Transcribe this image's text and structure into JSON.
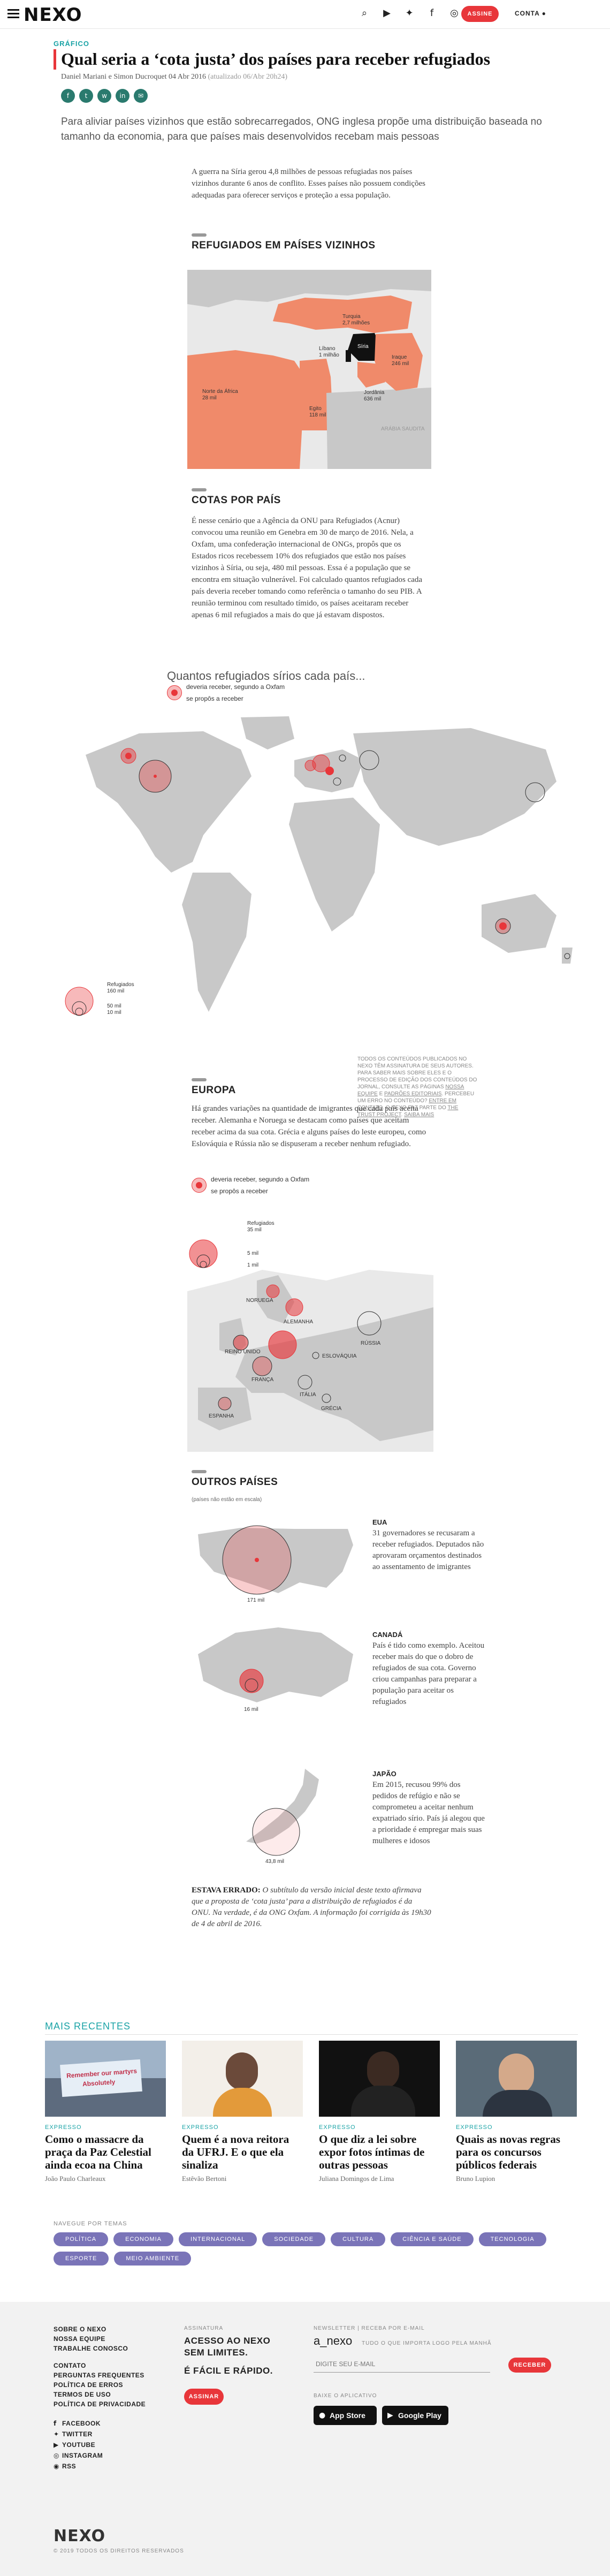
{
  "header": {
    "logo": "NEXO",
    "assine_label": "ASSINE",
    "conta_label": "CONTA"
  },
  "article": {
    "section": "GRÁFICO",
    "title": "Qual seria a ‘cota justa’ dos países para receber refugiados",
    "byline": "Daniel Mariani e Simon Ducroquet",
    "date": "04 Abr 2016",
    "updated": "(atualizado 06/Abr 20h24)",
    "lede": "Para aliviar países vizinhos que estão sobrecarregados, ONG inglesa propõe uma distribuição baseada no tamanho da economia, para que países mais desenvolvidos recebam mais pessoas",
    "intro": "A guerra na Síria gerou 4,8 milhões de pessoas refugiadas nos países vizinhos durante 6 anos de conflito. Esses países não possuem condições adequadas para oferecer serviços e proteção a essa população.",
    "sec1": "REFUGIADOS EM PAÍSES VIZINHOS",
    "sec2": "COTAS POR PAÍS",
    "cotas_text": "É nesse cenário que a Agência da ONU para Refugiados (Acnur) convocou uma reunião em Genebra em 30 de março de 2016. Nela, a Oxfam, uma confederação internacional de ONGs, propôs que os Estados ricos recebessem 10% dos refugiados que estão nos países vizinhos à Síria, ou seja, 480 mil pessoas. Essa é a população que se encontra em situação vulnerável. Foi calculado quantos refugiados cada país deveria receber tomando como referência o tamanho do seu PIB. A reunião terminou com resultado tímido, os países aceitaram receber apenas 6 mil refugiados a mais do que já estavam dispostos.",
    "q_title": "Quantos refugiados sírios cada país...",
    "legend_should": "deveria receber, segundo a Oxfam",
    "legend_proposed": "se propôs a receber",
    "legend_title": "Refugiados",
    "legend_160": "160 mil",
    "legend_50": "50 mil",
    "legend_10": "10 mil",
    "note": "TODOS OS CONTEÚDOS PUBLICADOS NO NEXO TÊM ASSINATURA DE SEUS AUTORES. PARA SABER MAIS SOBRE ELES E O PROCESSO DE EDIÇÃO DOS CONTEÚDOS DO JORNAL, CONSULTE AS PÁGINAS",
    "note_link1": "NOSSA EQUIPE",
    "note_e": "E",
    "note_link2": "PADRÕES EDITORIAIS",
    "note_end": ". PERCEBEU UM ERRO NO CONTEÚDO?",
    "note_link3": "ENTRE EM CONTATO",
    "note_tail": ". O NEXO FAZ PARTE DO",
    "note_link4": "THE TRUST PROJECT",
    "note_link5": "SAIBA MAIS",
    "sec3": "EUROPA",
    "europa_text": "Há grandes variações na quantidade de imigrantes que cada país aceita receber. Alemanha e Noruega se destacam como países que aceitam receber acima da sua cota. Grécia e alguns países do leste europeu, como Eslováquia e Rússia não se dispuseram a receber nenhum refugiado.",
    "eu_legend_title": "Refugiados",
    "eu_legend_35": "35 mil",
    "eu_legend_5": "5 mil",
    "eu_legend_1": "1 mil",
    "sec4": "OUTROS PAÍSES",
    "outros_note": "(países não estão em escala)",
    "eua_title": "EUA",
    "eua_text": "31 governadores se recusaram a receber refugiados. Deputados não aprovaram orçamentos destinados ao assentamento de imigrantes",
    "eua_value": "171 mil",
    "canada_title": "CANADÁ",
    "canada_text": "País é tido como exemplo. Aceitou receber mais do que o dobro de refugiados de sua cota. Governo criou campanhas para preparar a população para aceitar os refugiados",
    "canada_value": "16 mil",
    "japao_title": "JAPÃO",
    "japao_text": "Em 2015, recusou 99% dos pedidos de refúgio e não se comprometeu a aceitar nenhum expatriado sírio. País já alegou que a prioridade é empregar mais suas mulheres e idosos",
    "japao_value": "43,8 mil",
    "correction_label": "ESTAVA ERRADO:",
    "correction_text": "O subtítulo da versão inicial deste texto afirmava que a proposta de ‘cota justa’ para a distribuição de refugiados é da ONU. Na verdade, é da ONG Oxfam. A informação foi corrigida às 19h30 de 4 de abril de 2016."
  },
  "map_labels": {
    "turquia": "Turquia",
    "turquia_v": "2,7 milhões",
    "siria": "Síria",
    "libano": "Líbano",
    "libano_v": "1 milhão",
    "iraque": "Iraque",
    "iraque_v": "246 mil",
    "jordania": "Jordânia",
    "jordania_v": "636 mil",
    "egito": "Egito",
    "egito_v": "118 mil",
    "norte_africa": "Norte da África",
    "norte_africa_v": "28 mil",
    "arabia": "ARÁBIA SAUDITA",
    "noruega": "NORUEGA",
    "alemanha": "ALEMANHA",
    "reino_unido": "REINO UNIDO",
    "franca": "FRANÇA",
    "espanha": "ESPANHA",
    "italia": "ITÁLIA",
    "grecia": "GRÉCIA",
    "eslovaquia": "ESLOVÁQUIA",
    "russia": "RÚSSIA"
  },
  "recentes": {
    "title": "MAIS RECENTES",
    "cards": [
      {
        "kind": "EXPRESSO",
        "headline": "Como o massacre da praça da Paz Celestial ainda ecoa na China",
        "author": "João Paulo Charleaux"
      },
      {
        "kind": "EXPRESSO",
        "headline": "Quem é a nova reitora da UFRJ. E o que ela sinaliza",
        "author": "Estêvão Bertoni"
      },
      {
        "kind": "EXPRESSO",
        "headline": "O que diz a lei sobre expor fotos íntimas de outras pessoas",
        "author": "Juliana Domingos de Lima"
      },
      {
        "kind": "EXPRESSO",
        "headline": "Quais as novas regras para os concursos públicos federais",
        "author": "Bruno Lupion"
      }
    ],
    "photo1_sign": "Remember our martyrs",
    "photo1_sign2": "Absolutely"
  },
  "tags": {
    "label": "NAVEGUE POR TEMAS",
    "items": [
      "POLÍTICA",
      "ECONOMIA",
      "INTERNACIONAL",
      "SOCIEDADE",
      "CULTURA",
      "CIÊNCIA E SAÚDE",
      "TECNOLOGIA",
      "ESPORTE",
      "MEIO AMBIENTE"
    ]
  },
  "footer": {
    "links1": [
      "SOBRE O NEXO",
      "NOSSA EQUIPE",
      "TRABALHE CONOSCO"
    ],
    "links2": [
      "CONTATO",
      "PERGUNTAS FREQUENTES",
      "POLÍTICA DE ERROS",
      "TERMOS DE USO",
      "POLÍTICA DE PRIVACIDADE"
    ],
    "social": [
      "FACEBOOK",
      "TWITTER",
      "YOUTUBE",
      "INSTAGRAM",
      "RSS"
    ],
    "assinatura_label": "ASSINATURA",
    "assinatura_big1": "ACESSO AO NEXO",
    "assinatura_big2": "SEM LIMITES.",
    "assinatura_big3": "É FÁCIL E RÁPIDO.",
    "assine_label": "ASSINAR",
    "newsletter_label": "NEWSLETTER | RECEBA POR E-MAIL",
    "newsletter_name": "a_nexo",
    "newsletter_desc": "TUDO O QUE IMPORTA LOGO PELA MANHÃ",
    "email_placeholder": "DIGITE SEU E-MAIL",
    "receber_label": "RECEBER",
    "app_label": "BAIXE O APLICATIVO",
    "appstore": "App Store",
    "googleplay": "Google Play",
    "logo": "NEXO",
    "copyright": "© 2019 TODOS OS DIREITOS RESERVADOS"
  },
  "colors": {
    "accent": "#e8363a",
    "teal": "#1aa3a6",
    "map_gray": "#c8c8c8",
    "map_orange": "#f08a6a",
    "tag_purple": "#7a74b8"
  }
}
